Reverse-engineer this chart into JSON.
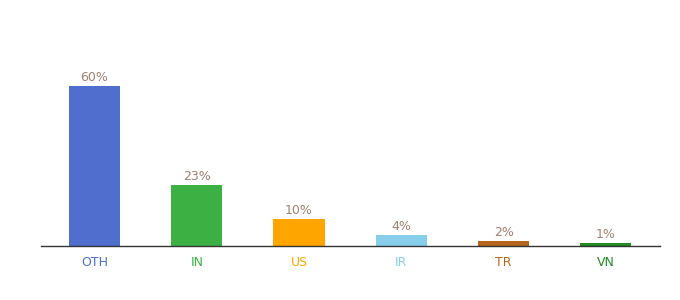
{
  "categories": [
    "OTH",
    "IN",
    "US",
    "IR",
    "TR",
    "VN"
  ],
  "values": [
    60,
    23,
    10,
    4,
    2,
    1
  ],
  "labels": [
    "60%",
    "23%",
    "10%",
    "4%",
    "2%",
    "1%"
  ],
  "bar_colors": [
    "#4F6ECD",
    "#3CB043",
    "#FFA500",
    "#87CEEB",
    "#B5651D",
    "#228B22"
  ],
  "label_color": "#A08070",
  "tick_colors": [
    "#4F6ECD",
    "#3CB043",
    "#FFA500",
    "#87CEEB",
    "#B5651D",
    "#228B22"
  ],
  "tick_fontsize": 9,
  "label_fontsize": 9,
  "background_color": "#ffffff",
  "ylim": [
    0,
    72
  ],
  "bar_width": 0.5,
  "figsize": [
    6.8,
    3.0
  ],
  "dpi": 100
}
